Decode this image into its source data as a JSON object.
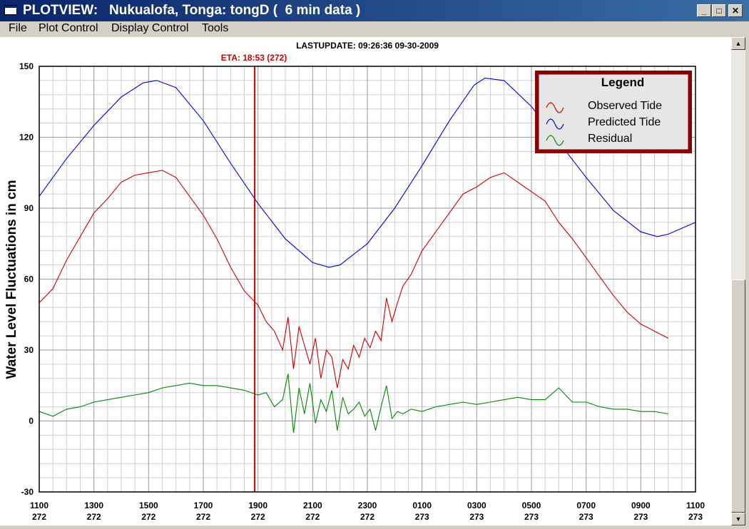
{
  "window": {
    "title": "PLOTVIEW:   Nukualofa, Tonga: tongD (  6 min data )",
    "minimize_glyph": "_",
    "maximize_glyph": "□",
    "close_glyph": "✕"
  },
  "menu": {
    "items": [
      "File",
      "Plot Control",
      "Display Control",
      "Tools"
    ]
  },
  "plot": {
    "last_update": "LASTUPDATE: 09:26:36  09-30-2009",
    "eta_label": "ETA: 18:53 (272)"
  },
  "chart_data": {
    "type": "line",
    "ylabel": "Water Level Fluctuations in cm",
    "xlabel": "",
    "ylim": [
      -30,
      150
    ],
    "y_ticks": [
      -30,
      0,
      30,
      60,
      90,
      120,
      150
    ],
    "x_ticks": [
      {
        "time": "1100",
        "day": "272"
      },
      {
        "time": "1300",
        "day": "272"
      },
      {
        "time": "1500",
        "day": "272"
      },
      {
        "time": "1700",
        "day": "272"
      },
      {
        "time": "1900",
        "day": "272"
      },
      {
        "time": "2100",
        "day": "272"
      },
      {
        "time": "2300",
        "day": "272"
      },
      {
        "time": "0100",
        "day": "273"
      },
      {
        "time": "0300",
        "day": "273"
      },
      {
        "time": "0500",
        "day": "273"
      },
      {
        "time": "0700",
        "day": "273"
      },
      {
        "time": "0900",
        "day": "273"
      },
      {
        "time": "1100",
        "day": "273"
      }
    ],
    "xlim_hours": [
      11,
      35
    ],
    "grid": true,
    "eta_marker_hours": 18.88,
    "legend": {
      "title": "Legend",
      "placement": "top-right",
      "entries": [
        {
          "label": "Observed Tide",
          "color": "#cc0000"
        },
        {
          "label": "Predicted Tide",
          "color": "#0000dd"
        },
        {
          "label": "Residual",
          "color": "#008800"
        }
      ]
    },
    "series": [
      {
        "name": "Predicted Tide",
        "color": "#0000dd",
        "x": [
          11,
          12,
          13,
          14,
          14.8,
          15.3,
          16,
          17,
          18,
          19,
          20,
          21,
          21.6,
          22,
          23,
          24,
          25,
          26,
          26.9,
          27.3,
          28,
          29,
          30,
          31,
          32,
          33,
          33.6,
          34,
          35
        ],
        "y": [
          95,
          111,
          125,
          137,
          143,
          144,
          141,
          127,
          109,
          92,
          77,
          67,
          65,
          66,
          75,
          90,
          108,
          127,
          142,
          145,
          144,
          133,
          118,
          103,
          89,
          80,
          78,
          79,
          84
        ]
      },
      {
        "name": "Observed Tide",
        "color": "#cc0000",
        "x": [
          11,
          11.5,
          12,
          12.5,
          13,
          13.5,
          14,
          14.5,
          15,
          15.5,
          16,
          16.5,
          17,
          17.5,
          18,
          18.5,
          19,
          19.3,
          19.6,
          19.9,
          20.1,
          20.3,
          20.5,
          20.7,
          20.9,
          21.1,
          21.3,
          21.5,
          21.7,
          21.9,
          22.1,
          22.3,
          22.5,
          22.7,
          22.9,
          23.1,
          23.3,
          23.5,
          23.7,
          23.9,
          24.1,
          24.3,
          24.6,
          25,
          25.5,
          26,
          26.5,
          27,
          27.5,
          28,
          28.5,
          29,
          29.5,
          30,
          30.5,
          31,
          31.5,
          32,
          32.5,
          33,
          33.5,
          34
        ],
        "y": [
          50,
          56,
          68,
          78,
          88,
          94,
          101,
          104,
          105,
          106,
          103,
          95,
          87,
          77,
          65,
          55,
          49,
          42,
          38,
          30,
          44,
          22,
          40,
          32,
          24,
          35,
          18,
          30,
          27,
          14,
          26,
          22,
          32,
          27,
          35,
          31,
          38,
          34,
          52,
          42,
          50,
          57,
          62,
          72,
          80,
          88,
          96,
          99,
          103,
          105,
          101,
          97,
          93,
          84,
          77,
          69,
          61,
          53,
          46,
          41,
          38,
          35
        ]
      },
      {
        "name": "Residual",
        "color": "#008800",
        "x": [
          11,
          11.5,
          12,
          12.5,
          13,
          13.5,
          14,
          14.5,
          15,
          15.5,
          16,
          16.5,
          17,
          17.5,
          18,
          18.5,
          19,
          19.3,
          19.6,
          19.9,
          20.1,
          20.3,
          20.5,
          20.7,
          20.9,
          21.1,
          21.3,
          21.5,
          21.7,
          21.9,
          22.1,
          22.3,
          22.5,
          22.7,
          22.9,
          23.1,
          23.3,
          23.5,
          23.7,
          23.9,
          24.1,
          24.3,
          24.6,
          25,
          25.5,
          26,
          26.5,
          27,
          27.5,
          28,
          28.5,
          29,
          29.5,
          30,
          30.5,
          31,
          31.5,
          32,
          32.5,
          33,
          33.5,
          34
        ],
        "y": [
          4,
          2,
          5,
          6,
          8,
          9,
          10,
          11,
          12,
          14,
          15,
          16,
          15,
          15,
          14,
          13,
          11,
          12,
          6,
          9,
          20,
          -5,
          14,
          3,
          16,
          -1,
          9,
          4,
          13,
          -4,
          10,
          3,
          5,
          8,
          2,
          5,
          -4,
          6,
          15,
          1,
          4,
          3,
          5,
          4,
          6,
          7,
          8,
          7,
          8,
          9,
          10,
          9,
          9,
          14,
          8,
          8,
          6,
          5,
          5,
          4,
          4,
          3
        ]
      }
    ]
  }
}
